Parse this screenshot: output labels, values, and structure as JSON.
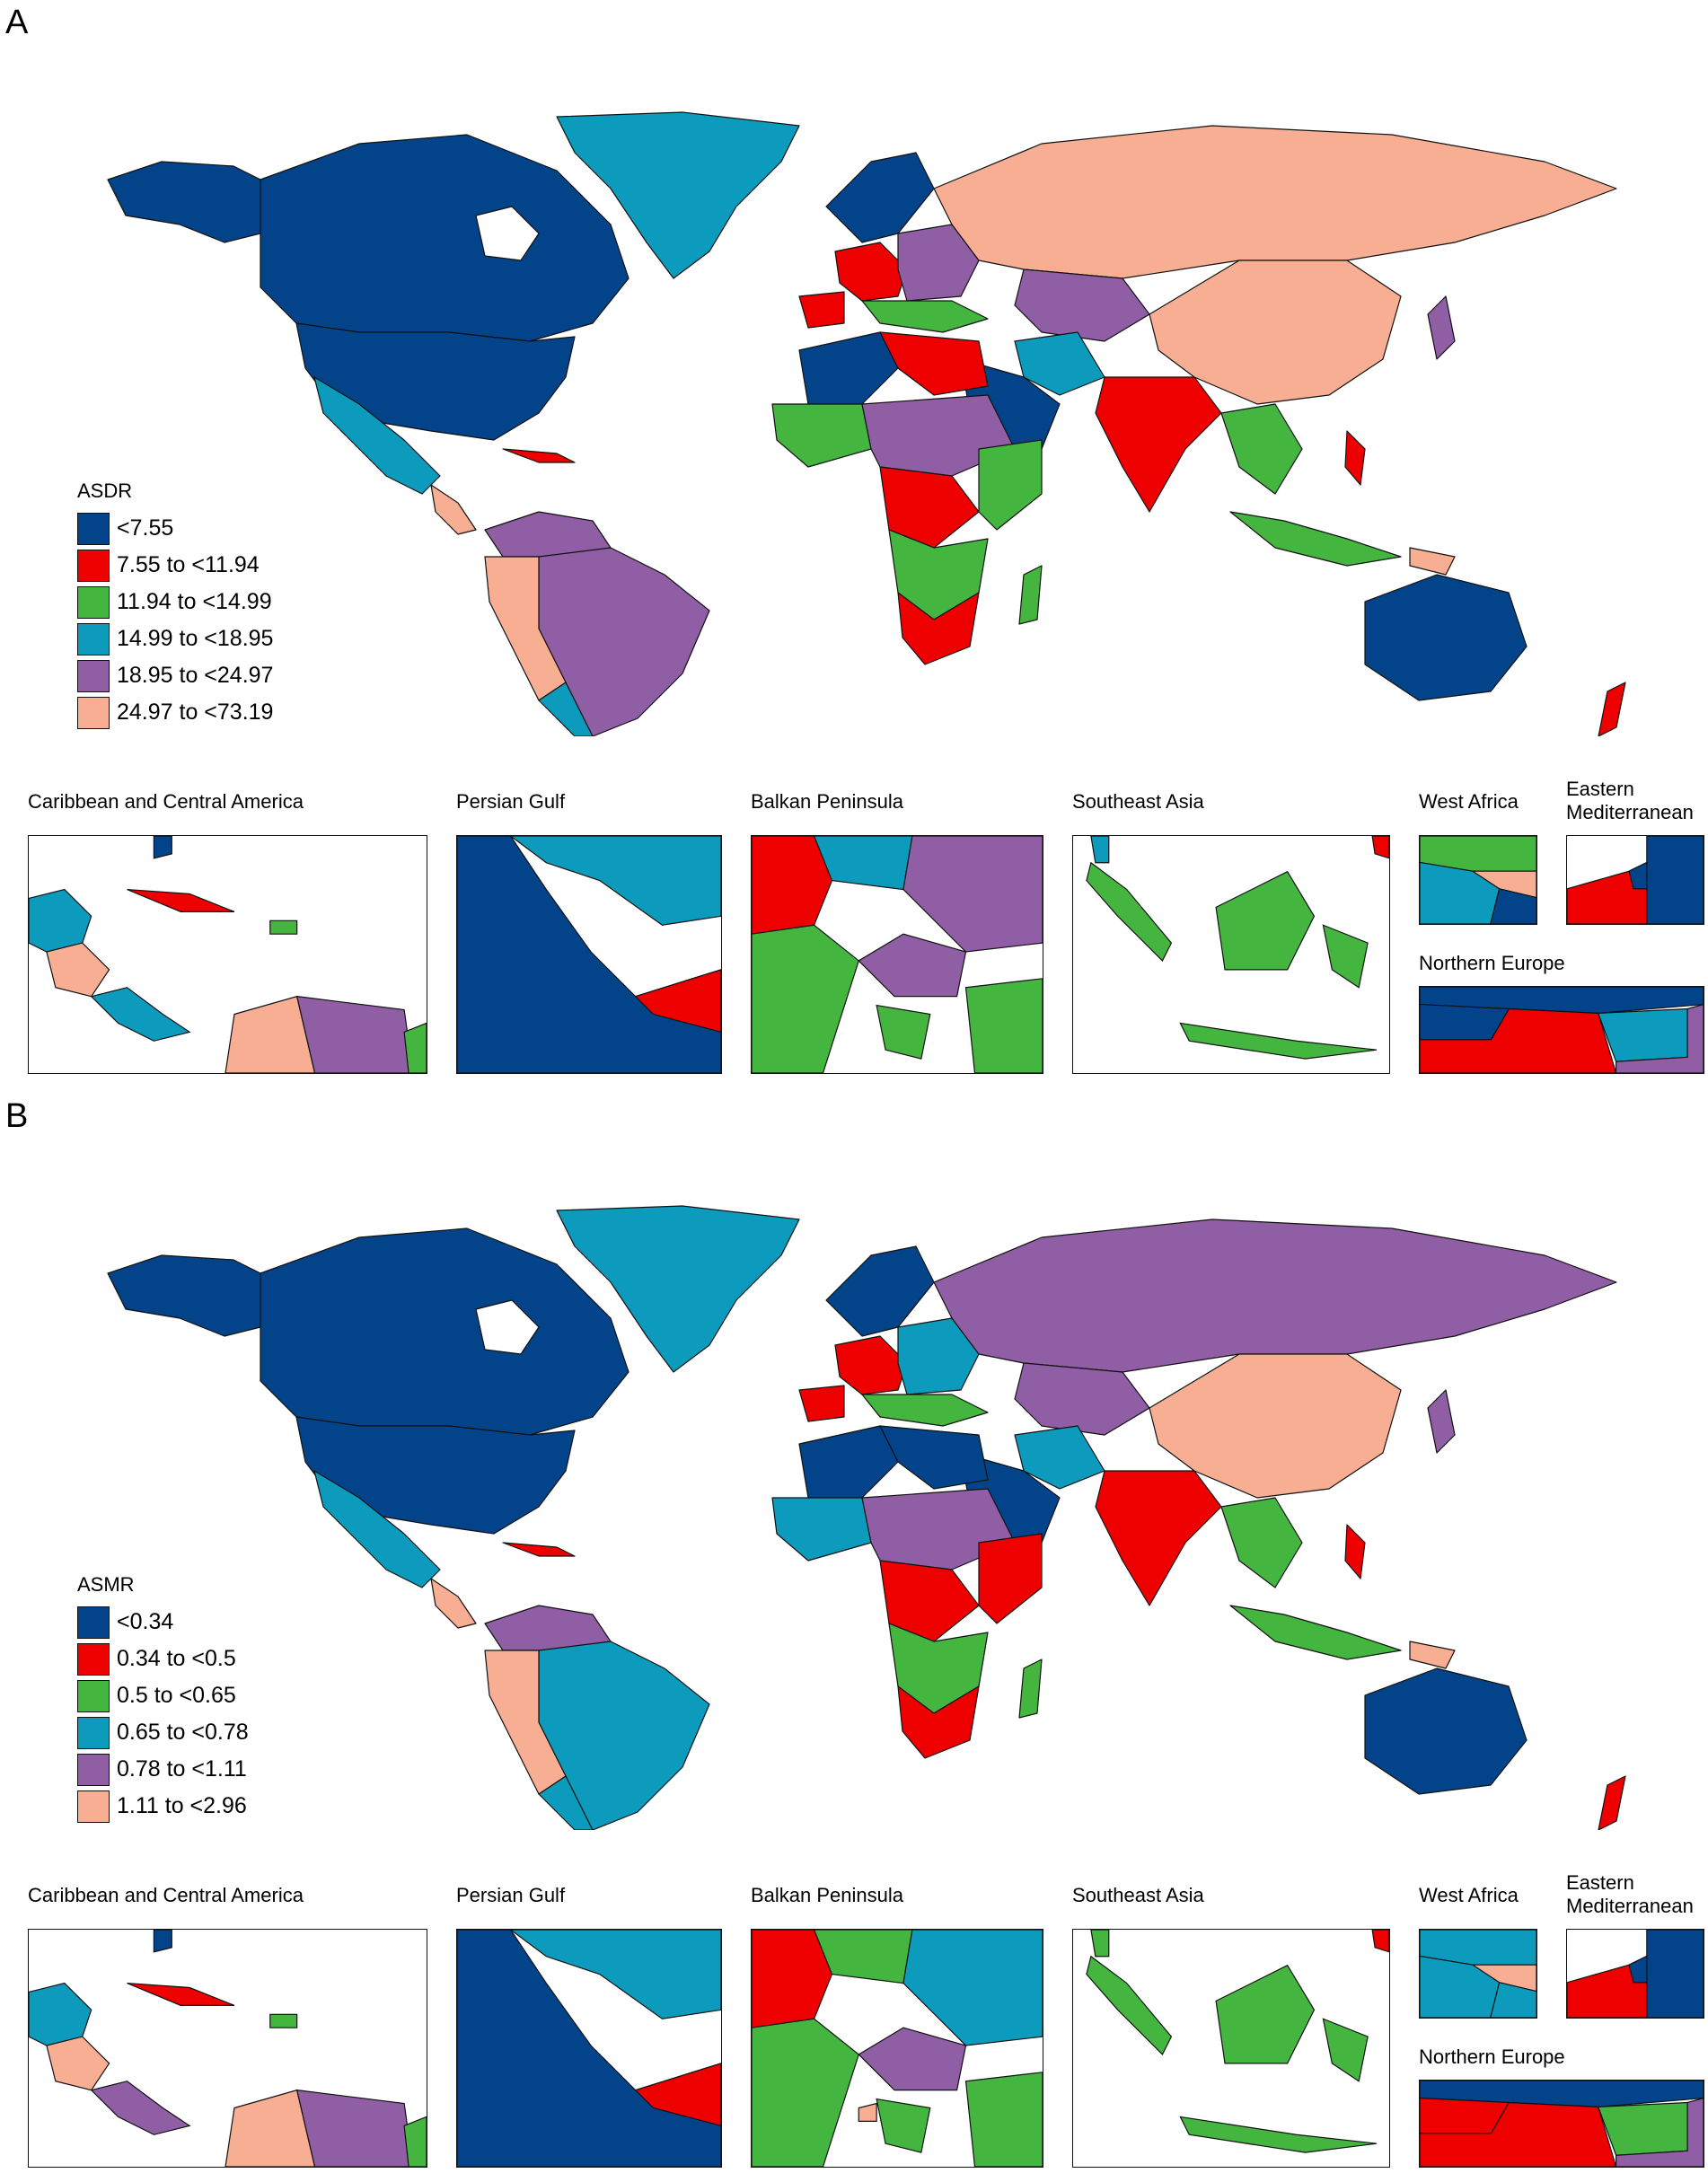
{
  "colors": {
    "dark_blue": "#034389",
    "red": "#ee0000",
    "green": "#44b640",
    "teal": "#0c9bbd",
    "purple": "#8f5ea4",
    "peach": "#f7ae92",
    "border": "#111111"
  },
  "panels": [
    {
      "letter": "A",
      "legend": {
        "title": "ASDR",
        "items": [
          {
            "label": "<7.55",
            "color": "#034389"
          },
          {
            "label": "7.55 to <11.94",
            "color": "#ee0000"
          },
          {
            "label": "11.94 to <14.99",
            "color": "#44b640"
          },
          {
            "label": "14.99 to <18.95",
            "color": "#0c9bbd"
          },
          {
            "label": "18.95 to <24.97",
            "color": "#8f5ea4"
          },
          {
            "label": "24.97 to <73.19",
            "color": "#f7ae92"
          }
        ]
      },
      "insets": [
        {
          "title": "Caribbean and Central America"
        },
        {
          "title": "Persian Gulf"
        },
        {
          "title": "Balkan Peninsula"
        },
        {
          "title": "Southeast Asia"
        },
        {
          "title": "West Africa"
        },
        {
          "title": "Eastern Mediterranean"
        },
        {
          "title": "Northern Europe"
        }
      ]
    },
    {
      "letter": "B",
      "legend": {
        "title": "ASMR",
        "items": [
          {
            "label": "<0.34",
            "color": "#034389"
          },
          {
            "label": "0.34 to <0.5",
            "color": "#ee0000"
          },
          {
            "label": "0.5 to <0.65",
            "color": "#44b640"
          },
          {
            "label": "0.65 to <0.78",
            "color": "#0c9bbd"
          },
          {
            "label": "0.78 to <1.11",
            "color": "#8f5ea4"
          },
          {
            "label": "1.11 to <2.96",
            "color": "#f7ae92"
          }
        ]
      },
      "insets": [
        {
          "title": "Caribbean and Central America"
        },
        {
          "title": "Persian Gulf"
        },
        {
          "title": "Balkan Peninsula"
        },
        {
          "title": "Southeast Asia"
        },
        {
          "title": "West Africa"
        },
        {
          "title": "Eastern Mediterranean"
        },
        {
          "title": "Northern Europe"
        }
      ]
    }
  ]
}
